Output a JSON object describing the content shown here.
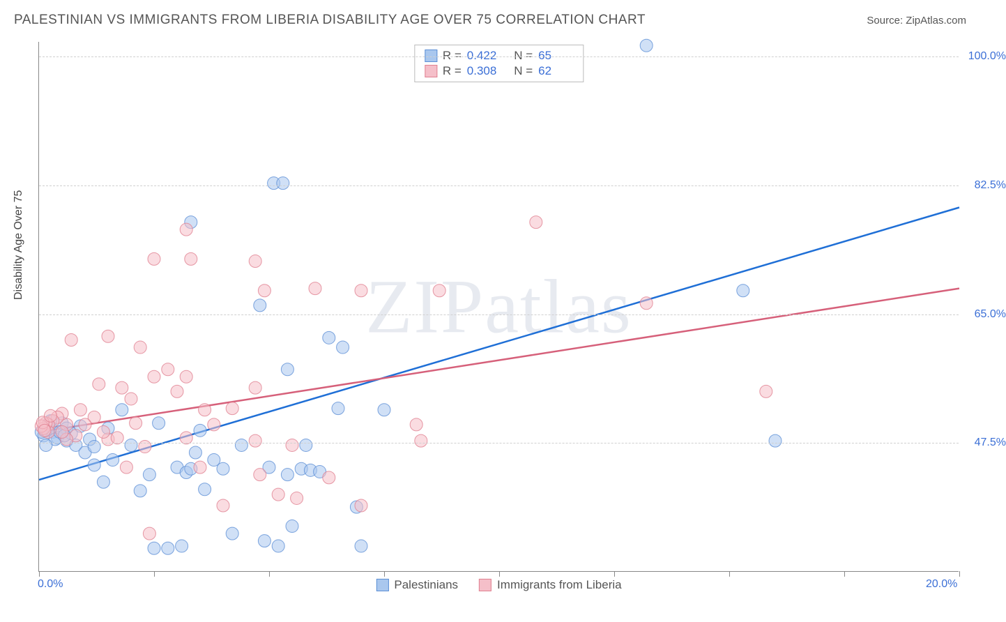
{
  "title": "PALESTINIAN VS IMMIGRANTS FROM LIBERIA DISABILITY AGE OVER 75 CORRELATION CHART",
  "source_label": "Source: ",
  "source_name": "ZipAtlas.com",
  "watermark": "ZIPatlas",
  "chart": {
    "type": "scatter",
    "ylabel": "Disability Age Over 75",
    "xlim": [
      0,
      20
    ],
    "ylim": [
      30,
      102
    ],
    "x_ticks": [
      0,
      2.5,
      5,
      7.5,
      10,
      12.5,
      15,
      17.5,
      20
    ],
    "y_gridlines": [
      47.5,
      65.0,
      82.5,
      100.0
    ],
    "x_axis_labels": [
      {
        "val": 0.0,
        "text": "0.0%"
      },
      {
        "val": 20.0,
        "text": "20.0%"
      }
    ],
    "y_axis_labels": [
      {
        "val": 47.5,
        "text": "47.5%"
      },
      {
        "val": 65.0,
        "text": "65.0%"
      },
      {
        "val": 82.5,
        "text": "82.5%"
      },
      {
        "val": 100.0,
        "text": "100.0%"
      }
    ],
    "background_color": "#ffffff",
    "grid_color": "#d0d0d0",
    "marker_radius": 9,
    "marker_opacity": 0.55,
    "line_width": 2.5,
    "series": [
      {
        "key": "palestinians",
        "label": "Palestinians",
        "color_fill": "#a9c7ee",
        "color_stroke": "#5c8fd6",
        "line_color": "#1f6fd6",
        "R": "0.422",
        "N": "65",
        "regression": {
          "y_at_x0": 42.5,
          "y_at_x20": 79.5
        },
        "points": [
          [
            13.2,
            101.5
          ],
          [
            5.1,
            82.8
          ],
          [
            5.3,
            82.8
          ],
          [
            3.3,
            77.5
          ],
          [
            15.3,
            68.2
          ],
          [
            4.8,
            66.2
          ],
          [
            16.0,
            47.8
          ],
          [
            6.3,
            61.8
          ],
          [
            0.2,
            50.0
          ],
          [
            0.3,
            49.0
          ],
          [
            0.4,
            48.2
          ],
          [
            0.5,
            50.2
          ],
          [
            0.6,
            49.5
          ],
          [
            0.6,
            47.8
          ],
          [
            0.7,
            48.8
          ],
          [
            0.8,
            47.2
          ],
          [
            0.9,
            49.8
          ],
          [
            1.0,
            46.2
          ],
          [
            1.1,
            48.0
          ],
          [
            1.2,
            47.0
          ],
          [
            1.2,
            44.5
          ],
          [
            1.4,
            42.2
          ],
          [
            1.5,
            49.5
          ],
          [
            1.6,
            45.2
          ],
          [
            1.8,
            52.0
          ],
          [
            2.0,
            47.2
          ],
          [
            2.2,
            41.0
          ],
          [
            2.4,
            43.2
          ],
          [
            2.5,
            33.2
          ],
          [
            2.6,
            50.2
          ],
          [
            2.8,
            33.2
          ],
          [
            3.0,
            44.2
          ],
          [
            3.1,
            33.5
          ],
          [
            3.2,
            43.5
          ],
          [
            3.3,
            44.0
          ],
          [
            3.4,
            46.2
          ],
          [
            3.5,
            49.2
          ],
          [
            3.6,
            41.2
          ],
          [
            3.8,
            45.2
          ],
          [
            4.0,
            44.0
          ],
          [
            4.2,
            35.2
          ],
          [
            4.4,
            47.2
          ],
          [
            4.9,
            34.2
          ],
          [
            5.0,
            44.2
          ],
          [
            5.2,
            33.5
          ],
          [
            5.4,
            43.2
          ],
          [
            5.5,
            36.2
          ],
          [
            5.7,
            44.0
          ],
          [
            5.8,
            47.2
          ],
          [
            5.9,
            43.8
          ],
          [
            6.1,
            43.6
          ],
          [
            6.5,
            52.2
          ],
          [
            6.6,
            60.5
          ],
          [
            5.4,
            57.5
          ],
          [
            6.9,
            38.8
          ],
          [
            7.0,
            33.5
          ],
          [
            7.5,
            52.0
          ],
          [
            0.1,
            48.5
          ],
          [
            0.15,
            49.2
          ],
          [
            0.25,
            50.5
          ],
          [
            0.35,
            48.0
          ],
          [
            0.45,
            49.0
          ],
          [
            0.55,
            48.5
          ],
          [
            0.15,
            47.2
          ],
          [
            0.05,
            49.0
          ]
        ]
      },
      {
        "key": "liberia",
        "label": "Immigrants from Liberia",
        "color_fill": "#f5bfc9",
        "color_stroke": "#e08090",
        "line_color": "#d6607a",
        "R": "0.308",
        "N": "62",
        "regression": {
          "y_at_x0": 49.0,
          "y_at_x20": 68.5
        },
        "points": [
          [
            10.8,
            77.5
          ],
          [
            13.2,
            66.5
          ],
          [
            15.8,
            54.5
          ],
          [
            3.2,
            76.5
          ],
          [
            3.3,
            72.5
          ],
          [
            2.5,
            72.5
          ],
          [
            4.7,
            72.2
          ],
          [
            4.9,
            68.2
          ],
          [
            6.0,
            68.5
          ],
          [
            7.0,
            68.2
          ],
          [
            8.7,
            68.2
          ],
          [
            8.3,
            47.8
          ],
          [
            8.2,
            50.0
          ],
          [
            7.0,
            39.0
          ],
          [
            6.3,
            42.8
          ],
          [
            5.6,
            40.0
          ],
          [
            5.5,
            47.2
          ],
          [
            4.7,
            47.8
          ],
          [
            4.7,
            55.0
          ],
          [
            4.2,
            52.2
          ],
          [
            4.0,
            39.0
          ],
          [
            3.8,
            50.0
          ],
          [
            3.5,
            44.2
          ],
          [
            3.2,
            48.2
          ],
          [
            3.0,
            54.5
          ],
          [
            2.8,
            57.5
          ],
          [
            2.5,
            56.5
          ],
          [
            2.3,
            47.0
          ],
          [
            2.2,
            60.5
          ],
          [
            2.0,
            53.5
          ],
          [
            1.9,
            44.2
          ],
          [
            1.8,
            55.0
          ],
          [
            1.5,
            62.0
          ],
          [
            1.5,
            48.0
          ],
          [
            1.3,
            55.5
          ],
          [
            1.2,
            51.0
          ],
          [
            1.0,
            50.0
          ],
          [
            0.9,
            52.0
          ],
          [
            0.8,
            48.5
          ],
          [
            0.7,
            61.5
          ],
          [
            0.6,
            50.0
          ],
          [
            0.6,
            48.0
          ],
          [
            0.5,
            51.5
          ],
          [
            0.5,
            49.0
          ],
          [
            0.4,
            51.0
          ],
          [
            0.3,
            50.5
          ],
          [
            0.2,
            50.0
          ],
          [
            0.2,
            49.0
          ],
          [
            0.15,
            50.2
          ],
          [
            0.1,
            49.5
          ],
          [
            2.4,
            35.2
          ],
          [
            3.2,
            56.5
          ],
          [
            4.8,
            43.2
          ],
          [
            3.6,
            52.0
          ],
          [
            1.7,
            48.2
          ],
          [
            2.1,
            50.2
          ],
          [
            1.4,
            49.0
          ],
          [
            5.2,
            40.5
          ],
          [
            0.05,
            49.8
          ],
          [
            0.08,
            50.3
          ],
          [
            0.12,
            49.2
          ],
          [
            0.25,
            51.2
          ]
        ]
      }
    ],
    "legend": [
      {
        "series": "palestinians"
      },
      {
        "series": "liberia"
      }
    ]
  }
}
